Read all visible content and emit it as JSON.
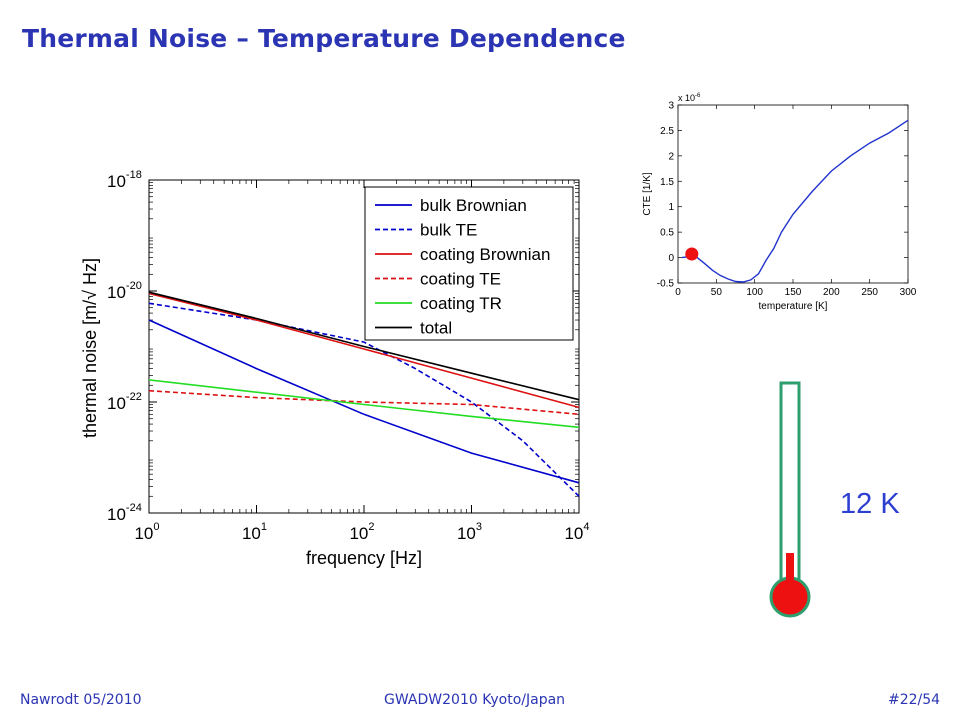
{
  "slide": {
    "title": "Thermal Noise – Temperature Dependence",
    "temperature_label": "12 K",
    "footer_left": "Nawrodt 05/2010",
    "footer_center": "GWADW2010 Kyoto/Japan",
    "footer_right": "#22/54"
  },
  "colors": {
    "title": "#2b35b3",
    "blue": "#0000cc",
    "red": "#dd1111",
    "green": "#22dd22",
    "black": "#000000",
    "thermometer_frame": "#2e9e6e",
    "thermometer_mercury": "#ee1111",
    "temp_label": "#2c3fd0"
  },
  "chart_data": [
    {
      "type": "line",
      "xlabel": "frequency [Hz]",
      "ylabel": "thermal noise [m/√ Hz]",
      "x_scale": "log",
      "y_scale": "log",
      "xlim": [
        1,
        10000
      ],
      "ylim": [
        1e-24,
        1e-18
      ],
      "x_ticks": [
        {
          "value": 1,
          "base": "10",
          "exp": "0"
        },
        {
          "value": 10,
          "base": "10",
          "exp": "1"
        },
        {
          "value": 100,
          "base": "10",
          "exp": "2"
        },
        {
          "value": 1000,
          "base": "10",
          "exp": "3"
        },
        {
          "value": 10000,
          "base": "10",
          "exp": "4"
        }
      ],
      "y_ticks": [
        {
          "value": 1e-24,
          "base": "10",
          "exp": "-24"
        },
        {
          "value": 1e-22,
          "base": "10",
          "exp": "-22"
        },
        {
          "value": 1e-20,
          "base": "10",
          "exp": "-20"
        },
        {
          "value": 1e-18,
          "base": "10",
          "exp": "-18"
        }
      ],
      "legend_position": "top-right",
      "series": [
        {
          "name": "bulk Brownian",
          "color": "#0000cc",
          "dash": false,
          "x": [
            1,
            10,
            100,
            1000,
            10000
          ],
          "y": [
            3e-21,
            4e-22,
            6e-23,
            1.2e-23,
            3.5e-24
          ]
        },
        {
          "name": "bulk TE",
          "color": "#0000cc",
          "dash": true,
          "x": [
            1,
            10,
            100,
            300,
            1000,
            3000,
            10000
          ],
          "y": [
            6e-21,
            3e-21,
            1.2e-21,
            4e-22,
            1e-22,
            2e-23,
            2e-24
          ]
        },
        {
          "name": "coating Brownian",
          "color": "#dd1111",
          "dash": false,
          "x": [
            1,
            10,
            100,
            1000,
            10000
          ],
          "y": [
            9e-21,
            3e-21,
            9e-22,
            2.7e-22,
            8e-23
          ]
        },
        {
          "name": "coating TE",
          "color": "#dd1111",
          "dash": true,
          "x": [
            1,
            10,
            100,
            1000,
            10000
          ],
          "y": [
            1.6e-22,
            1.2e-22,
            1e-22,
            9e-23,
            6e-23
          ]
        },
        {
          "name": "coating TR",
          "color": "#22dd22",
          "dash": false,
          "x": [
            1,
            10,
            100,
            1000,
            10000
          ],
          "y": [
            2.5e-22,
            1.5e-22,
            9e-23,
            5.5e-23,
            3.5e-23
          ]
        },
        {
          "name": "total",
          "color": "#000000",
          "dash": false,
          "x": [
            1,
            10,
            100,
            1000,
            10000
          ],
          "y": [
            9.5e-21,
            3.2e-21,
            1e-21,
            3.3e-22,
            1.1e-22
          ]
        }
      ]
    },
    {
      "type": "line",
      "xlabel": "temperature [K]",
      "ylabel": "CTE [1/K]",
      "multiplier_base": "x 10",
      "multiplier_exp": "-6",
      "xlim": [
        0,
        300
      ],
      "ylim": [
        -0.5,
        3
      ],
      "x_ticks": [
        0,
        50,
        100,
        150,
        200,
        250,
        300
      ],
      "y_ticks": [
        -0.5,
        0,
        0.5,
        1,
        1.5,
        2,
        2.5,
        3
      ],
      "series": [
        {
          "color": "#2233cc",
          "x": [
            5,
            15,
            25,
            35,
            45,
            55,
            65,
            75,
            85,
            95,
            105,
            115,
            125,
            135,
            150,
            175,
            200,
            225,
            250,
            275,
            300
          ],
          "y": [
            0,
            0.02,
            0,
            -0.12,
            -0.25,
            -0.35,
            -0.42,
            -0.47,
            -0.48,
            -0.44,
            -0.32,
            -0.05,
            0.18,
            0.5,
            0.85,
            1.3,
            1.7,
            2.0,
            2.25,
            2.45,
            2.7
          ]
        }
      ],
      "marker": {
        "x": 18,
        "y": 0.07,
        "color": "#ee1111"
      }
    }
  ]
}
